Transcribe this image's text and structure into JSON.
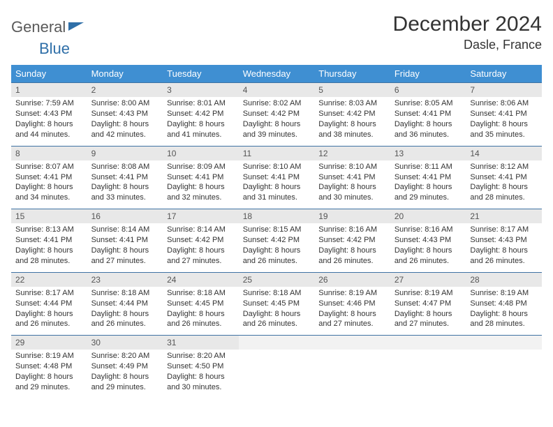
{
  "logo": {
    "text1": "General",
    "text2": "Blue",
    "flag_color": "#2f6fa8"
  },
  "title": "December 2024",
  "location": "Dasle, France",
  "colors": {
    "header_bg": "#3f8fd2",
    "header_text": "#ffffff",
    "cell_divider": "#3f72a3",
    "daynum_bg": "#e8e8e8",
    "text": "#333333"
  },
  "font": {
    "title_size": 30,
    "location_size": 18,
    "dayheader_size": 13,
    "cell_size": 11
  },
  "day_headers": [
    "Sunday",
    "Monday",
    "Tuesday",
    "Wednesday",
    "Thursday",
    "Friday",
    "Saturday"
  ],
  "weeks": [
    [
      {
        "n": "1",
        "sr": "7:59 AM",
        "ss": "4:43 PM",
        "dl": "8 hours and 44 minutes."
      },
      {
        "n": "2",
        "sr": "8:00 AM",
        "ss": "4:43 PM",
        "dl": "8 hours and 42 minutes."
      },
      {
        "n": "3",
        "sr": "8:01 AM",
        "ss": "4:42 PM",
        "dl": "8 hours and 41 minutes."
      },
      {
        "n": "4",
        "sr": "8:02 AM",
        "ss": "4:42 PM",
        "dl": "8 hours and 39 minutes."
      },
      {
        "n": "5",
        "sr": "8:03 AM",
        "ss": "4:42 PM",
        "dl": "8 hours and 38 minutes."
      },
      {
        "n": "6",
        "sr": "8:05 AM",
        "ss": "4:41 PM",
        "dl": "8 hours and 36 minutes."
      },
      {
        "n": "7",
        "sr": "8:06 AM",
        "ss": "4:41 PM",
        "dl": "8 hours and 35 minutes."
      }
    ],
    [
      {
        "n": "8",
        "sr": "8:07 AM",
        "ss": "4:41 PM",
        "dl": "8 hours and 34 minutes."
      },
      {
        "n": "9",
        "sr": "8:08 AM",
        "ss": "4:41 PM",
        "dl": "8 hours and 33 minutes."
      },
      {
        "n": "10",
        "sr": "8:09 AM",
        "ss": "4:41 PM",
        "dl": "8 hours and 32 minutes."
      },
      {
        "n": "11",
        "sr": "8:10 AM",
        "ss": "4:41 PM",
        "dl": "8 hours and 31 minutes."
      },
      {
        "n": "12",
        "sr": "8:10 AM",
        "ss": "4:41 PM",
        "dl": "8 hours and 30 minutes."
      },
      {
        "n": "13",
        "sr": "8:11 AM",
        "ss": "4:41 PM",
        "dl": "8 hours and 29 minutes."
      },
      {
        "n": "14",
        "sr": "8:12 AM",
        "ss": "4:41 PM",
        "dl": "8 hours and 28 minutes."
      }
    ],
    [
      {
        "n": "15",
        "sr": "8:13 AM",
        "ss": "4:41 PM",
        "dl": "8 hours and 28 minutes."
      },
      {
        "n": "16",
        "sr": "8:14 AM",
        "ss": "4:41 PM",
        "dl": "8 hours and 27 minutes."
      },
      {
        "n": "17",
        "sr": "8:14 AM",
        "ss": "4:42 PM",
        "dl": "8 hours and 27 minutes."
      },
      {
        "n": "18",
        "sr": "8:15 AM",
        "ss": "4:42 PM",
        "dl": "8 hours and 26 minutes."
      },
      {
        "n": "19",
        "sr": "8:16 AM",
        "ss": "4:42 PM",
        "dl": "8 hours and 26 minutes."
      },
      {
        "n": "20",
        "sr": "8:16 AM",
        "ss": "4:43 PM",
        "dl": "8 hours and 26 minutes."
      },
      {
        "n": "21",
        "sr": "8:17 AM",
        "ss": "4:43 PM",
        "dl": "8 hours and 26 minutes."
      }
    ],
    [
      {
        "n": "22",
        "sr": "8:17 AM",
        "ss": "4:44 PM",
        "dl": "8 hours and 26 minutes."
      },
      {
        "n": "23",
        "sr": "8:18 AM",
        "ss": "4:44 PM",
        "dl": "8 hours and 26 minutes."
      },
      {
        "n": "24",
        "sr": "8:18 AM",
        "ss": "4:45 PM",
        "dl": "8 hours and 26 minutes."
      },
      {
        "n": "25",
        "sr": "8:18 AM",
        "ss": "4:45 PM",
        "dl": "8 hours and 26 minutes."
      },
      {
        "n": "26",
        "sr": "8:19 AM",
        "ss": "4:46 PM",
        "dl": "8 hours and 27 minutes."
      },
      {
        "n": "27",
        "sr": "8:19 AM",
        "ss": "4:47 PM",
        "dl": "8 hours and 27 minutes."
      },
      {
        "n": "28",
        "sr": "8:19 AM",
        "ss": "4:48 PM",
        "dl": "8 hours and 28 minutes."
      }
    ],
    [
      {
        "n": "29",
        "sr": "8:19 AM",
        "ss": "4:48 PM",
        "dl": "8 hours and 29 minutes."
      },
      {
        "n": "30",
        "sr": "8:20 AM",
        "ss": "4:49 PM",
        "dl": "8 hours and 29 minutes."
      },
      {
        "n": "31",
        "sr": "8:20 AM",
        "ss": "4:50 PM",
        "dl": "8 hours and 30 minutes."
      },
      null,
      null,
      null,
      null
    ]
  ],
  "labels": {
    "sunrise": "Sunrise:",
    "sunset": "Sunset:",
    "daylight": "Daylight:"
  }
}
